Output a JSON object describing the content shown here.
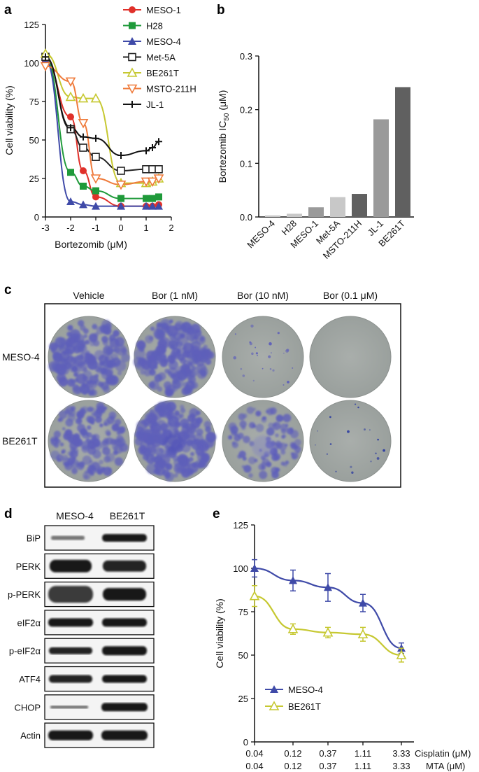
{
  "panels": {
    "a": "a",
    "b": "b",
    "c": "c",
    "d": "d",
    "e": "e"
  },
  "colors": {
    "MESO-1": "#e0302a",
    "H28": "#1f9a3a",
    "MESO-4": "#3f4aa8",
    "Met-5A": "#222222",
    "BE261T": "#c6c831",
    "MSTO-211H": "#ef7a3a",
    "JL-1": "#111111",
    "bar_light": "#c8c8c8",
    "bar_mid": "#9a9a9a",
    "bar_dark": "#606060"
  },
  "chart_data": [
    {
      "id": "a",
      "type": "line",
      "xlabel": "Bortezomib (μM)",
      "ylabel": "Cell viability (%)",
      "xlim": [
        -3,
        2
      ],
      "ylim": [
        0,
        125
      ],
      "xticks": [
        "-3",
        "-2",
        "-1",
        "0",
        "1",
        "2"
      ],
      "yticks": [
        "0",
        "25",
        "50",
        "75",
        "100",
        "125"
      ],
      "legend_placement": "top-right",
      "x": [
        -3,
        -2,
        -1.5,
        -1,
        0,
        1,
        1.25,
        1.5
      ],
      "series": [
        {
          "name": "MESO-1",
          "marker": "circle-filled",
          "values": [
            101,
            65,
            30,
            13,
            7,
            7,
            7,
            8
          ]
        },
        {
          "name": "H28",
          "marker": "square-filled",
          "values": [
            104,
            29,
            20,
            17,
            12,
            12,
            12,
            13
          ]
        },
        {
          "name": "MESO-4",
          "marker": "triangle-filled",
          "values": [
            102,
            10,
            8,
            7,
            7,
            7,
            7,
            7
          ]
        },
        {
          "name": "Met-5A",
          "marker": "square-open",
          "values": [
            104,
            57,
            45,
            39,
            30,
            31,
            31,
            31
          ]
        },
        {
          "name": "BE261T",
          "marker": "triangle-open",
          "values": [
            106,
            78,
            77,
            77,
            22,
            22,
            23,
            25
          ]
        },
        {
          "name": "MSTO-211H",
          "marker": "triangle-down-open",
          "values": [
            98,
            88,
            61,
            25,
            21,
            23,
            23,
            25
          ]
        },
        {
          "name": "JL-1",
          "marker": "plus",
          "values": [
            104,
            58,
            52,
            51,
            40,
            43,
            45,
            49
          ]
        }
      ]
    },
    {
      "id": "b",
      "type": "bar",
      "ylabel": "Bortezomib IC",
      "ylabel_sub": "50",
      "ylabel_unit": " (μM)",
      "ylim": [
        0,
        0.3
      ],
      "yticks": [
        "0.0",
        "0.1",
        "0.2",
        "0.3"
      ],
      "categories": [
        "MESO-4",
        "H28",
        "MESO-1",
        "Met-5A",
        "MSTO-211H",
        "JL-1",
        "BE261T"
      ],
      "values": [
        0.003,
        0.006,
        0.018,
        0.037,
        0.043,
        0.182,
        0.242
      ]
    },
    {
      "id": "e",
      "type": "line",
      "ylabel": "Cell viability (%)",
      "ylim": [
        0,
        125
      ],
      "yticks": [
        "0",
        "25",
        "50",
        "75",
        "100",
        "125"
      ],
      "x_categories": [
        "0.04",
        "0.12",
        "0.37",
        "1.11",
        "3.33"
      ],
      "x_row1_label": "Cisplatin (μM)",
      "x_row2_label": "MTA (μM)",
      "legend_placement": "bottom-left",
      "series": [
        {
          "name": "MESO-4",
          "marker": "triangle-filled",
          "values": [
            100,
            93,
            89,
            80,
            54
          ]
        },
        {
          "name": "BE261T",
          "marker": "triangle-open",
          "values": [
            84,
            65,
            63,
            62,
            50
          ]
        }
      ]
    }
  ],
  "colony": {
    "conditions": [
      "Vehicle",
      "Bor (1 nM)",
      "Bor (10 nM)",
      "Bor (0.1 μM)"
    ],
    "cell_lines": [
      "MESO-4",
      "BE261T"
    ]
  },
  "western": {
    "lanes": [
      "MESO-4",
      "BE261T"
    ],
    "proteins": [
      "BiP",
      "PERK",
      "p-PERK",
      "eIF2α",
      "p-eIF2α",
      "ATF4",
      "CHOP",
      "Actin"
    ]
  }
}
